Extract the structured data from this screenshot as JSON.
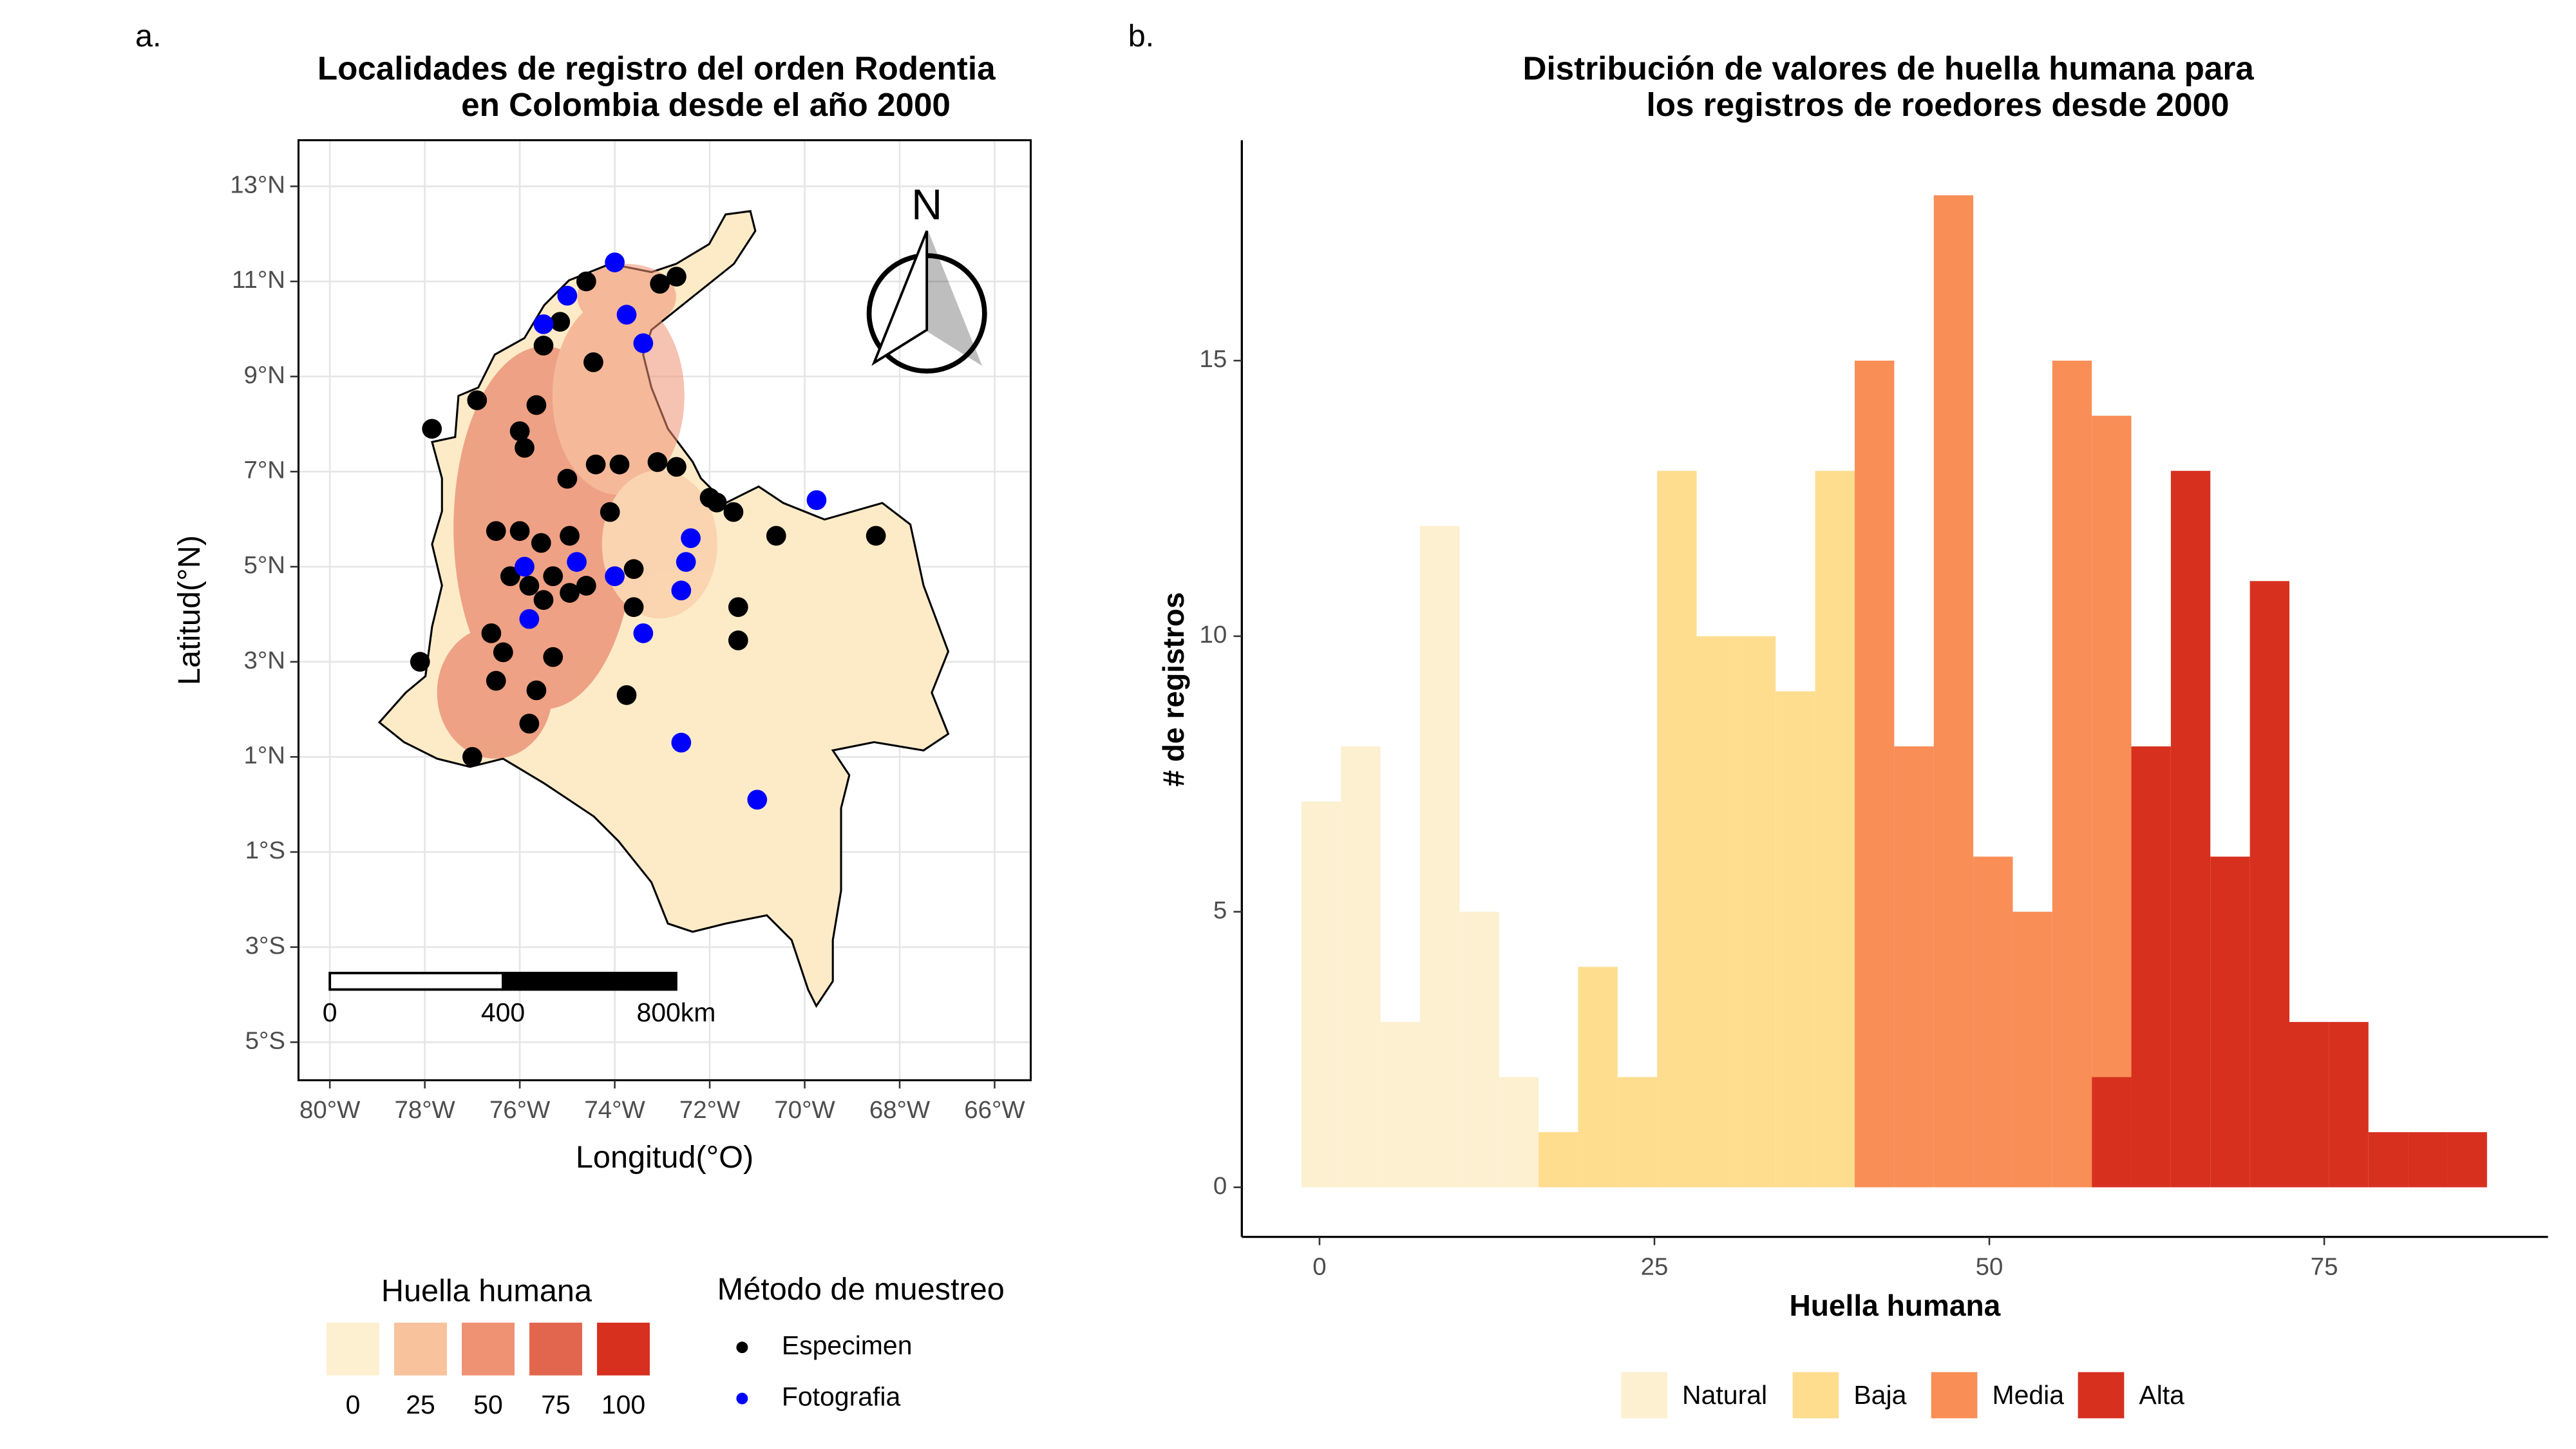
{
  "chart_data": [
    {
      "type": "scatter",
      "panel_label": "a.",
      "title": [
        "Localidades de registro del orden Rodentia",
        "en Colombia desde el año 2000"
      ],
      "x_label": "Longitud(°O)",
      "y_label": "Latitud(°N)",
      "xlim": [
        -80.66,
        -65.24
      ],
      "ylim": [
        -5.8,
        13.97
      ],
      "xticks": [
        {
          "value": -80,
          "label": "80°W"
        },
        {
          "value": -78,
          "label": "78°W"
        },
        {
          "value": -76,
          "label": "76°W"
        },
        {
          "value": -74,
          "label": "74°W"
        },
        {
          "value": -72,
          "label": "72°W"
        },
        {
          "value": -70,
          "label": "70°W"
        },
        {
          "value": -68,
          "label": "68°W"
        },
        {
          "value": -66,
          "label": "66°W"
        }
      ],
      "yticks": [
        {
          "value": 13,
          "label": "13°N"
        },
        {
          "value": 11,
          "label": "11°N"
        },
        {
          "value": 9,
          "label": "9°N"
        },
        {
          "value": 7,
          "label": "7°N"
        },
        {
          "value": 5,
          "label": "5°N"
        },
        {
          "value": 3,
          "label": "3°N"
        },
        {
          "value": 1,
          "label": "1°N"
        },
        {
          "value": -1,
          "label": "1°S"
        },
        {
          "value": -3,
          "label": "3°S"
        },
        {
          "value": -5,
          "label": "5°S"
        }
      ],
      "grid": true,
      "legend_title": "Método de muestreo",
      "series": [
        {
          "name": "Especimen",
          "color": "#000000",
          "x": [
            -78.1,
            -77.0,
            -76.5,
            -76.6,
            -76.35,
            -75.8,
            -75.65,
            -75.3,
            -75.5,
            -75.8,
            -75.55,
            -74.95,
            -76.0,
            -76.5,
            -75.0,
            -76.0,
            -75.9,
            -74.4,
            -73.9,
            -73.1,
            -72.7,
            -72.0,
            -70.6,
            -68.5,
            -71.4,
            -71.4,
            -73.75,
            -73.6,
            -74.6,
            -74.1,
            -77.85,
            -76.9,
            -75.65,
            -74.45,
            -75.15,
            -74.6,
            -73.05,
            -72.7,
            -75.5,
            -74.95,
            -76.2,
            -75.3,
            -73.6,
            -71.85,
            -71.5
          ],
          "y": [
            3.0,
            1.0,
            2.6,
            3.6,
            3.2,
            1.7,
            2.4,
            3.1,
            4.3,
            4.6,
            5.5,
            5.65,
            5.75,
            5.75,
            6.85,
            7.85,
            7.5,
            7.15,
            7.15,
            7.2,
            7.1,
            6.45,
            5.65,
            5.65,
            4.15,
            3.45,
            2.3,
            4.15,
            4.6,
            6.15,
            7.9,
            8.5,
            8.4,
            9.3,
            10.15,
            11.0,
            10.95,
            11.1,
            9.65,
            4.45,
            4.8,
            4.8,
            4.95,
            6.35,
            6.15
          ]
        },
        {
          "name": "Fotografia",
          "color": "#0000ff",
          "x": [
            -74.0,
            -75.0,
            -73.75,
            -73.4,
            -75.5,
            -69.75,
            -72.4,
            -72.5,
            -75.9,
            -74.8,
            -74.0,
            -72.6,
            -73.4,
            -72.6,
            -71.0,
            -75.8
          ],
          "y": [
            11.4,
            10.7,
            10.3,
            9.7,
            10.1,
            6.4,
            5.6,
            5.1,
            5.0,
            5.1,
            4.8,
            4.5,
            3.6,
            1.3,
            0.1,
            3.9
          ]
        }
      ],
      "fill_legend": {
        "title": "Huella humana",
        "values": [
          0,
          25,
          50,
          75,
          100
        ],
        "colors": [
          "#fdf0d0",
          "#f8c29d",
          "#ef9274",
          "#e2664d",
          "#d7301f"
        ]
      },
      "scale_bar": [
        "0",
        "400",
        "800km"
      ],
      "north": "N"
    },
    {
      "type": "histogram",
      "panel_label": "b.",
      "title": [
        "Distribución de valores de huella humana para",
        "los registros de roedores desde 2000"
      ],
      "x_label": "Huella humana",
      "y_label": "# de registros",
      "bins": [
        -1.35,
        1.6,
        4.55,
        7.5,
        10.45,
        13.4,
        16.35,
        19.3,
        22.25,
        25.2,
        28.15,
        31.1,
        34.05,
        37,
        39.95,
        42.9,
        45.85,
        48.8,
        51.75,
        54.7,
        57.65,
        60.6,
        63.55,
        66.5,
        69.45,
        72.4,
        75.35,
        78.3,
        81.25,
        84.2,
        87.15
      ],
      "series": [
        {
          "name": "Natural",
          "color": "#fdf0d0",
          "values": [
            7,
            8,
            3,
            12,
            5,
            2,
            0,
            0,
            0,
            0,
            0,
            0,
            0,
            0,
            0,
            0,
            0,
            0,
            0,
            0,
            0,
            0,
            0,
            0,
            0,
            0,
            0,
            0,
            0,
            0
          ]
        },
        {
          "name": "Baja",
          "color": "#fedd8f",
          "values": [
            0,
            0,
            0,
            0,
            0,
            0,
            1,
            4,
            2,
            13,
            10,
            10,
            9,
            13,
            0,
            0,
            0,
            0,
            0,
            0,
            0,
            0,
            0,
            0,
            0,
            0,
            0,
            0,
            0,
            0
          ]
        },
        {
          "name": "Media",
          "color": "#f98e56",
          "values": [
            0,
            0,
            0,
            0,
            0,
            0,
            0,
            0,
            0,
            0,
            0,
            0,
            0,
            0,
            15,
            8,
            18,
            6,
            5,
            15,
            12,
            0,
            0,
            0,
            0,
            0,
            0,
            0,
            0,
            0
          ]
        },
        {
          "name": "Alta",
          "color": "#d7301f",
          "values": [
            0,
            0,
            0,
            0,
            0,
            0,
            0,
            0,
            0,
            0,
            0,
            0,
            0,
            0,
            0,
            0,
            0,
            0,
            0,
            0,
            2,
            8,
            13,
            6,
            11,
            3,
            3,
            1,
            1,
            1
          ]
        }
      ],
      "xlim": [
        -5.8,
        91.7
      ],
      "ylim": [
        -0.9,
        19
      ],
      "xticks": [
        0,
        25,
        50,
        75
      ],
      "yticks": [
        0,
        5,
        10,
        15
      ],
      "stacked": true,
      "legend": "bottom"
    }
  ]
}
